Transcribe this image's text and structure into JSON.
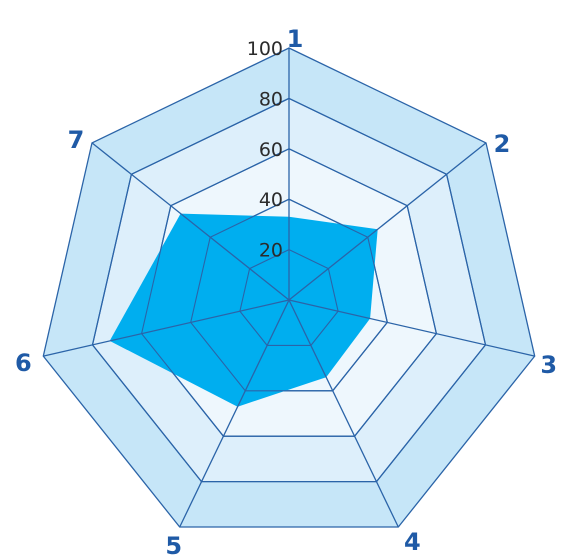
{
  "chart_data": {
    "type": "radar",
    "axes": [
      "1",
      "2",
      "3",
      "4",
      "5",
      "6",
      "7"
    ],
    "rmax": 100,
    "ticks": [
      20,
      40,
      60,
      80,
      100
    ],
    "tick_labels": [
      "20",
      "40",
      "60",
      "80",
      "100"
    ],
    "series": [
      {
        "values": [
          33,
          45,
          33,
          34,
          47,
          73,
          55
        ]
      }
    ],
    "colors": {
      "fill": "#00aeef",
      "grid_line": "#2b64a8",
      "band_light": "#eef7fd",
      "band_mid": "#ddeffb",
      "band_dark": "#c6e6f8",
      "axis_label": "#1f5aa6",
      "tick_text": "#2b2b2b"
    }
  }
}
